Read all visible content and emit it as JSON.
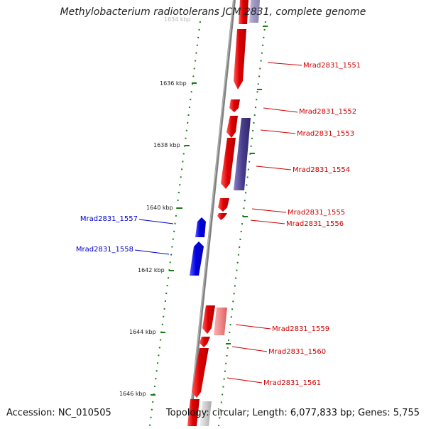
{
  "title": "Methylobacterium radiotolerans JCM 2831, complete genome",
  "accession_text": "Accession: NC_010505",
  "topology_text": "Topology: circular; Length: 6,077,833 bp; Genes: 5,755",
  "ticks": [
    "1634 kbp",
    "1636 kbp",
    "1638 kbp",
    "1640 kbp",
    "1642 kbp",
    "1644 kbp",
    "1646 kbp"
  ],
  "genes_forward": [
    "Mrad2831_1551",
    "Mrad2831_1552",
    "Mrad2831_1553",
    "Mrad2831_1554",
    "Mrad2831_1555",
    "Mrad2831_1556",
    "Mrad2831_1559",
    "Mrad2831_1560",
    "Mrad2831_1561"
  ],
  "genes_reverse": [
    "Mrad2831_1557",
    "Mrad2831_1558"
  ],
  "colors": {
    "forward_gene": "#e00000",
    "reverse_gene": "#0000dd",
    "other_gene": "#4a3f8f",
    "faded_gene": "#f08a8a",
    "backbone": "#808080",
    "tick": "#1a7a1a",
    "forward_label": "#cc0000",
    "reverse_label": "#0000cc"
  }
}
